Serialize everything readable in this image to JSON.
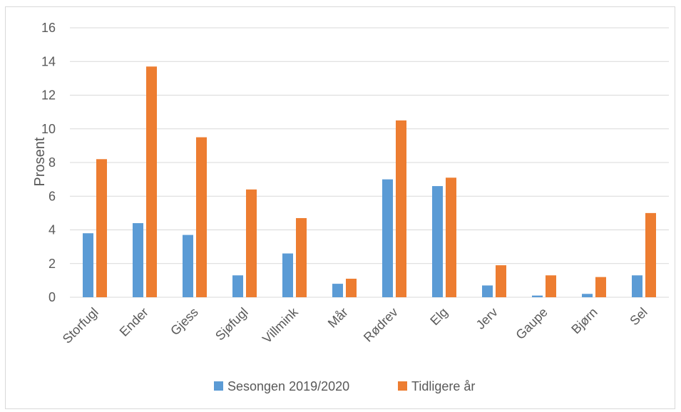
{
  "chart_data": {
    "type": "bar",
    "title": "",
    "xlabel": "",
    "ylabel": "Prosent",
    "ylim": [
      0,
      16
    ],
    "yticks": [
      0,
      2,
      4,
      6,
      8,
      10,
      12,
      14,
      16
    ],
    "grid": true,
    "legend_position": "bottom",
    "categories": [
      "Storfugl",
      "Ender",
      "Gjess",
      "Sjøfugl",
      "Villmink",
      "Mår",
      "Rødrev",
      "Elg",
      "Jerv",
      "Gaupe",
      "Bjørn",
      "Sel"
    ],
    "series": [
      {
        "name": "Sesongen 2019/2020",
        "color": "#5b9bd5",
        "values": [
          3.8,
          4.4,
          3.7,
          1.3,
          2.6,
          0.8,
          7.0,
          6.6,
          0.7,
          0.1,
          0.2,
          1.3
        ]
      },
      {
        "name": "Tidligere år",
        "color": "#ed7d31",
        "values": [
          8.2,
          13.7,
          9.5,
          6.4,
          4.7,
          1.1,
          10.5,
          7.1,
          1.9,
          1.3,
          1.2,
          5.0
        ]
      }
    ]
  }
}
